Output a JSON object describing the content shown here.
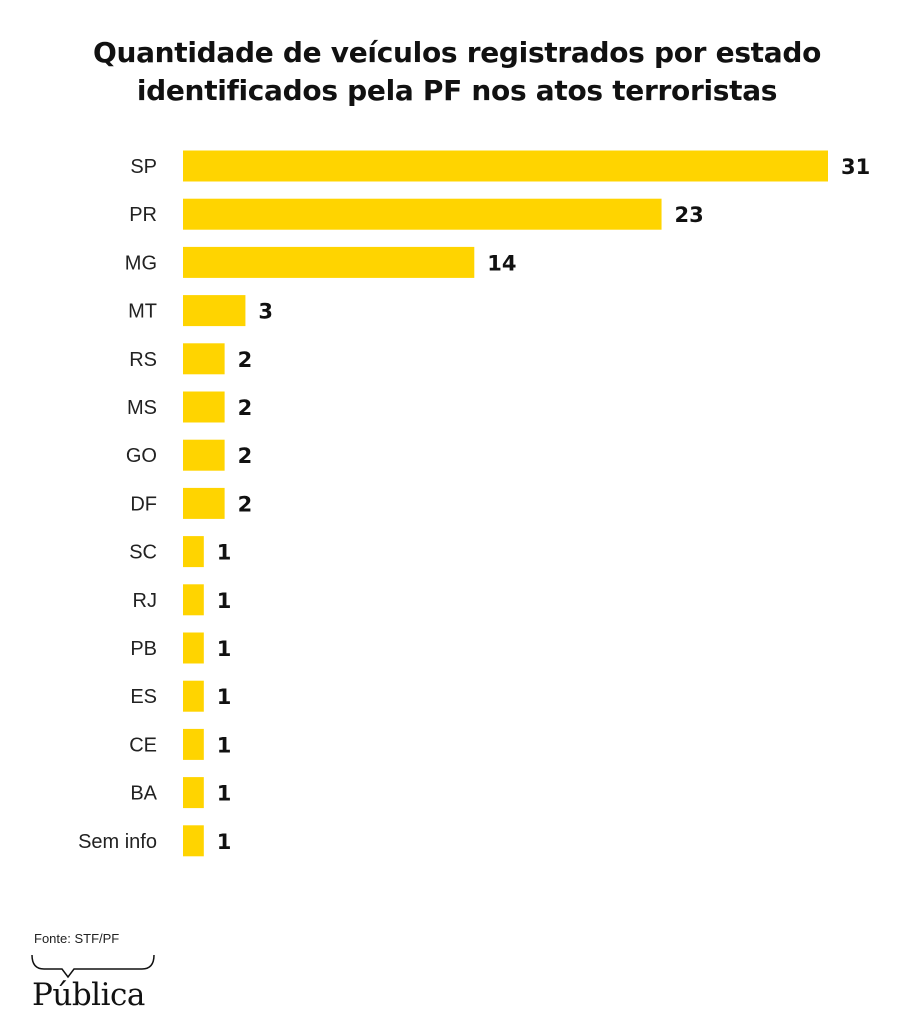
{
  "chart_data": {
    "type": "bar",
    "orientation": "horizontal",
    "title": "Quantidade de veículos registrados por estado identificados pela PF nos atos terroristas",
    "title_lines": [
      "Quantidade de veículos registrados por estado",
      "identificados pela PF nos atos terroristas"
    ],
    "categories": [
      "SP",
      "PR",
      "MG",
      "MT",
      "RS",
      "MS",
      "GO",
      "DF",
      "SC",
      "RJ",
      "PB",
      "ES",
      "CE",
      "BA",
      "Sem info"
    ],
    "values": [
      31,
      23,
      14,
      3,
      2,
      2,
      2,
      2,
      1,
      1,
      1,
      1,
      1,
      1,
      1
    ],
    "xlim": [
      0,
      31
    ],
    "grid": false,
    "legend": "none",
    "bar_color": "#FFD400"
  },
  "footer": {
    "source": "Fonte: STF/PF",
    "logo_text": "Pública"
  }
}
